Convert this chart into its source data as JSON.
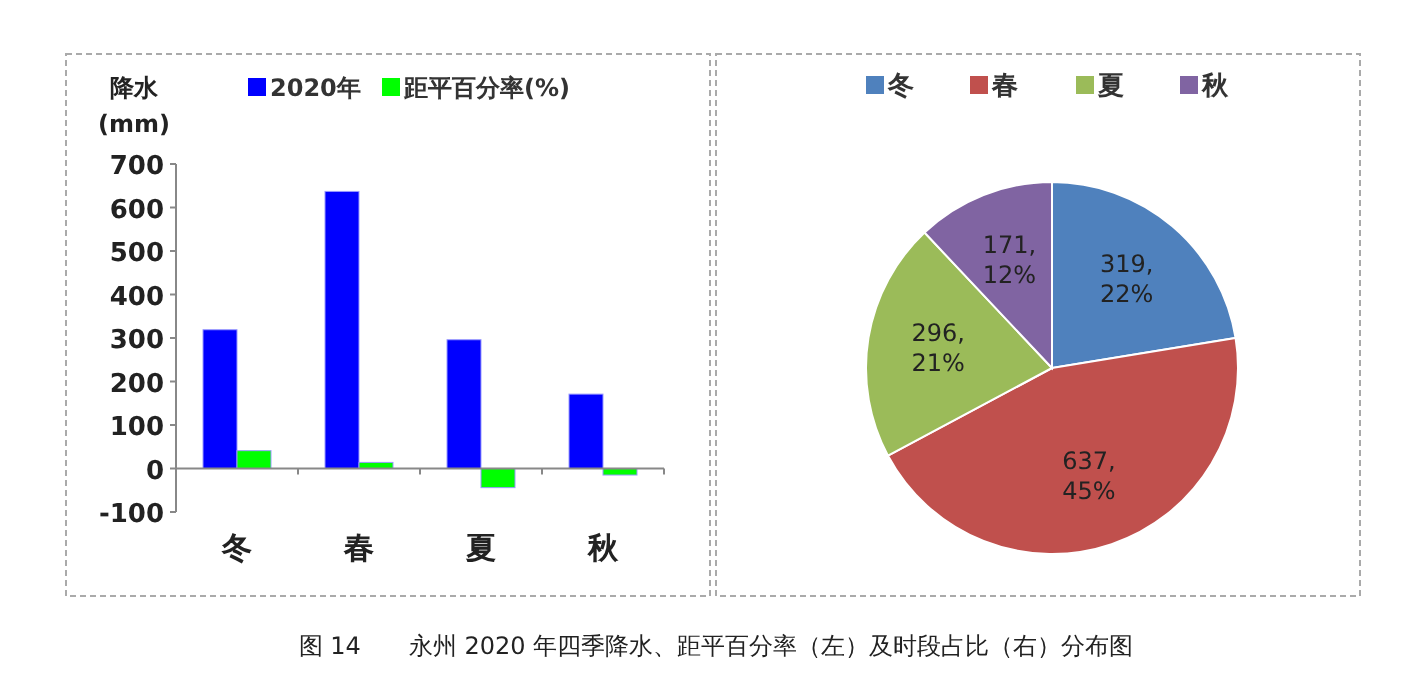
{
  "chart_data": [
    {
      "type": "bar",
      "ylabel": "降水\n(mm)",
      "categories": [
        "冬",
        "春",
        "夏",
        "秋"
      ],
      "series": [
        {
          "name": "2020年",
          "color": "#0000ff",
          "values": [
            319,
            637,
            296,
            171
          ]
        },
        {
          "name": "距平百分率(%)",
          "color": "#00ff00",
          "values": [
            41,
            14,
            -44,
            -15
          ]
        }
      ],
      "ylim": [
        -100,
        700
      ],
      "yticks": [
        -100,
        0,
        100,
        200,
        300,
        400,
        500,
        600,
        700
      ],
      "grid": false,
      "legend": "top",
      "annotations": [
        "图 14　　永州 2020 年四季降水、距平百分率（左）及时段占比（右）分布图"
      ]
    },
    {
      "type": "pie",
      "categories": [
        "冬",
        "春",
        "夏",
        "秋"
      ],
      "values": [
        319,
        637,
        296,
        171
      ],
      "colors": [
        "#4f81bd",
        "#c0504d",
        "#9bbb59",
        "#8064a2"
      ],
      "value_labels": [
        "319,\n22%",
        "637,\n45%",
        "296,\n21%",
        "171,\n12%"
      ],
      "legend": "top"
    }
  ]
}
